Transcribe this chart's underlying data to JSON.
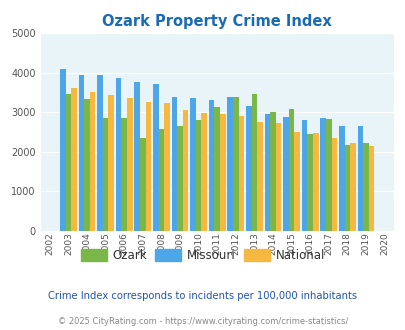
{
  "title": "Ozark Property Crime Index",
  "years": [
    2002,
    2003,
    2004,
    2005,
    2006,
    2007,
    2008,
    2009,
    2010,
    2011,
    2012,
    2013,
    2014,
    2015,
    2016,
    2017,
    2018,
    2019,
    2020
  ],
  "ozark": [
    0,
    3450,
    3340,
    2850,
    2850,
    2360,
    2570,
    2660,
    2800,
    3120,
    3390,
    3470,
    3010,
    3080,
    2460,
    2820,
    2170,
    2210,
    0
  ],
  "missouri": [
    0,
    4080,
    3930,
    3950,
    3860,
    3760,
    3700,
    3380,
    3360,
    3320,
    3380,
    3150,
    2960,
    2890,
    2810,
    2860,
    2640,
    2650,
    0
  ],
  "national": [
    0,
    3600,
    3500,
    3440,
    3360,
    3260,
    3230,
    3060,
    2970,
    2950,
    2900,
    2740,
    2720,
    2510,
    2480,
    2360,
    2220,
    2140,
    0
  ],
  "ozark_color": "#7ab648",
  "missouri_color": "#4da6e8",
  "national_color": "#f5b942",
  "bg_color": "#e8f4f8",
  "ylim": [
    0,
    5000
  ],
  "yticks": [
    0,
    1000,
    2000,
    3000,
    4000,
    5000
  ],
  "title_color": "#1a6bb5",
  "subtitle": "Crime Index corresponds to incidents per 100,000 inhabitants",
  "footer": "© 2025 CityRating.com - https://www.cityrating.com/crime-statistics/",
  "subtitle_color": "#2255aa",
  "footer_color": "#888888",
  "legend_text_color": "#333333"
}
